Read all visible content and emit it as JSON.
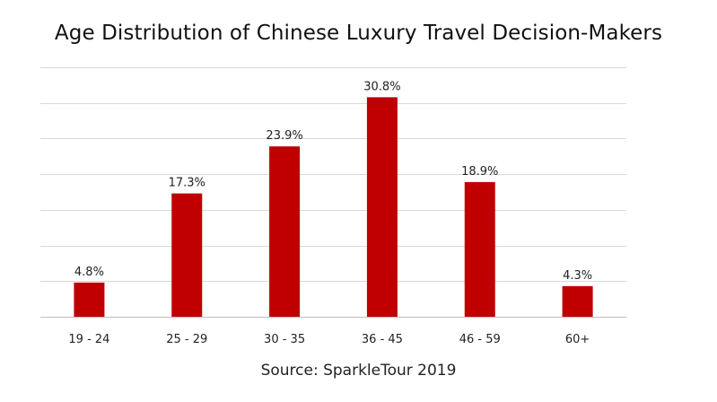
{
  "chart_data": {
    "type": "bar",
    "title": "Age Distribution of Chinese Luxury Travel Decision-Makers",
    "categories": [
      "19 - 24",
      "25 - 29",
      "30 - 35",
      "36 - 45",
      "46 - 59",
      "60+"
    ],
    "values": [
      4.8,
      17.3,
      23.9,
      30.8,
      18.9,
      4.3
    ],
    "data_labels": [
      "4.8%",
      "17.3%",
      "23.9%",
      "30.8%",
      "18.9%",
      "4.3%"
    ],
    "xlabel": "",
    "ylabel": "",
    "ylim": [
      0,
      35
    ],
    "ytick_step": 5,
    "grid": true,
    "legend": "none",
    "bar_color": "#C00000",
    "source": "Source: SparkleTour 2019"
  }
}
